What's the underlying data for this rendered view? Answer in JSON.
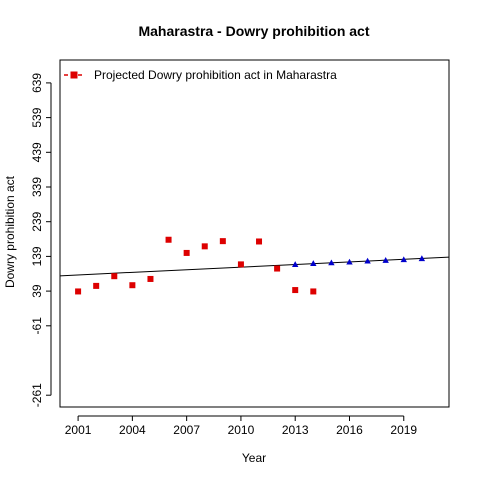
{
  "chart_data": {
    "type": "scatter",
    "title": "Maharastra  -  Dowry prohibition act",
    "xlabel": "Year",
    "ylabel": "Dowry prohibition act",
    "xlim": [
      2000.0,
      2021.5
    ],
    "ylim": [
      -295,
      705
    ],
    "x_ticks": [
      2001,
      2004,
      2007,
      2010,
      2013,
      2016,
      2019
    ],
    "y_ticks": [
      -261,
      -61,
      39,
      139,
      239,
      339,
      439,
      539,
      639
    ],
    "grid": false,
    "legend": {
      "position": "top-left",
      "entries": [
        {
          "label": "Projected  Dowry prohibition act  in  Maharastra",
          "color": "#dd0000",
          "marker": "square",
          "line": "dashed"
        }
      ]
    },
    "series": [
      {
        "color": "#dd0000",
        "marker": "square",
        "points": [
          [
            2001,
            38
          ],
          [
            2002,
            54
          ],
          [
            2003,
            82
          ],
          [
            2004,
            56
          ],
          [
            2005,
            74
          ],
          [
            2006,
            187
          ],
          [
            2007,
            149
          ],
          [
            2008,
            168
          ],
          [
            2009,
            183
          ],
          [
            2010,
            116
          ],
          [
            2011,
            182
          ],
          [
            2012,
            104
          ],
          [
            2013,
            42
          ],
          [
            2014,
            38
          ]
        ]
      },
      {
        "color": "#0000cc",
        "marker": "triangle",
        "points": [
          [
            2013,
            116
          ],
          [
            2014,
            119
          ],
          [
            2015,
            121
          ],
          [
            2016,
            123
          ],
          [
            2017,
            126
          ],
          [
            2018,
            128
          ],
          [
            2019,
            130
          ],
          [
            2020,
            133
          ]
        ]
      }
    ],
    "trend_line": {
      "color": "#000000",
      "x": [
        2000.0,
        2021.5
      ],
      "y": [
        83,
        137
      ]
    }
  }
}
